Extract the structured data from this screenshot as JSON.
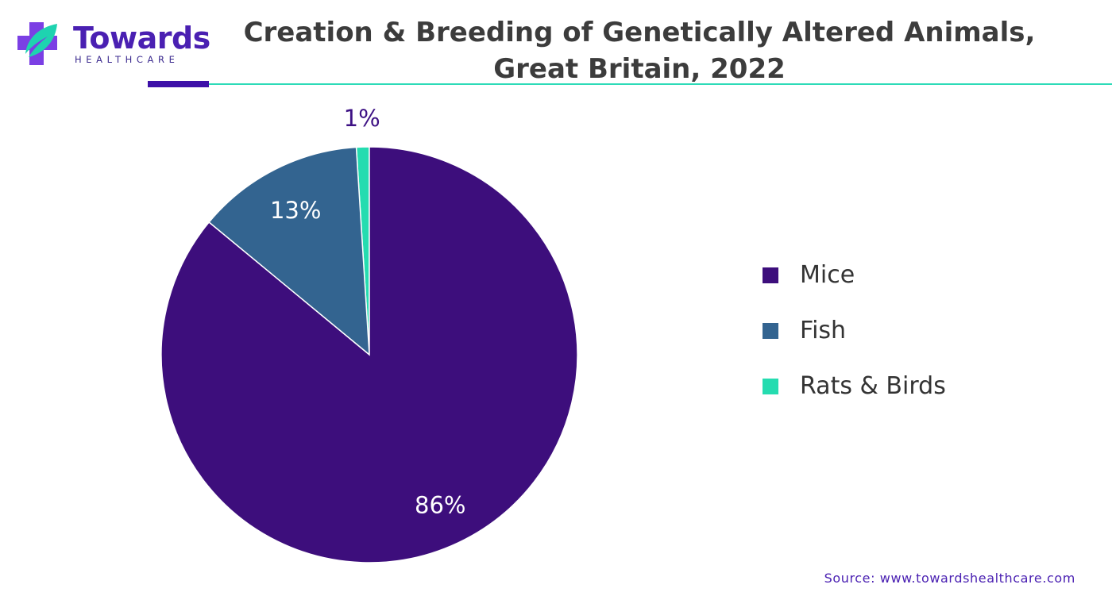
{
  "logo": {
    "name": "Towards",
    "tagline": "HEALTHCARE",
    "icon": "medical-cross-leaf-icon",
    "colors": {
      "name": "#4a20b2",
      "tagline": "#3c2b8f",
      "cross": "#7b3fe4",
      "leaf": "#1ed3b0"
    }
  },
  "header": {
    "title_line1": "Creation & Breeding of Genetically Altered Animals,",
    "title_line2": "Great Britain, 2022"
  },
  "colors": {
    "rule_dark": "#3d10a8",
    "rule_light": "#2ddbb8",
    "source": "#4a20b2",
    "label_on_dark": "#ffffff",
    "label_outside": "#3d1184"
  },
  "chart_data": {
    "type": "pie",
    "title": "Creation & Breeding of Genetically Altered Animals, Great Britain, 2022",
    "legend_position": "right",
    "slices": [
      {
        "name": "Mice",
        "value": 86,
        "label": "86%",
        "color": "#3d0e7c"
      },
      {
        "name": "Fish",
        "value": 13,
        "label": "13%",
        "color": "#336490"
      },
      {
        "name": "Rats & Birds",
        "value": 1,
        "label": "1%",
        "color": "#25dcb0"
      }
    ]
  },
  "source": "Source: www.towardshealthcare.com"
}
